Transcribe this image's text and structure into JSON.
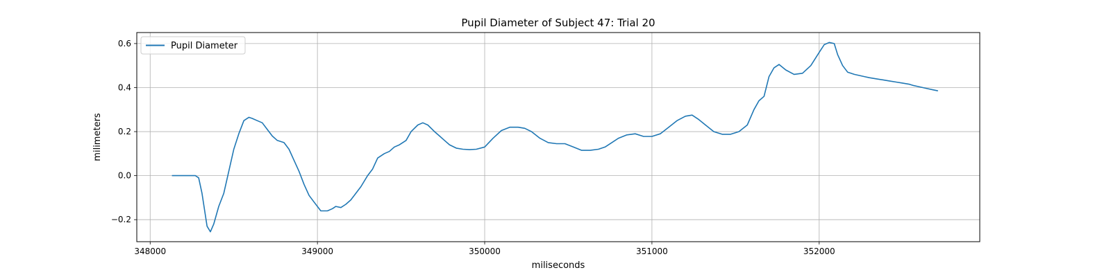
{
  "chart_data": {
    "type": "line",
    "title": "Pupil Diameter of Subject 47: Trial 20",
    "xlabel": "miliseconds",
    "ylabel": "milimeters",
    "xlim": [
      347920,
      352960
    ],
    "ylim": [
      -0.3,
      0.65
    ],
    "xticks": [
      348000,
      349000,
      350000,
      351000,
      352000
    ],
    "yticks": [
      -0.2,
      0.0,
      0.2,
      0.4,
      0.6
    ],
    "xtick_labels": [
      "348000",
      "349000",
      "350000",
      "351000",
      "352000"
    ],
    "ytick_labels": [
      "−0.2",
      "0.0",
      "0.2",
      "0.4",
      "0.6"
    ],
    "grid": true,
    "legend_position": "upper-left",
    "series": [
      {
        "name": "Pupil Diameter",
        "color": "#1f77b4",
        "x": [
          348130,
          348200,
          348270,
          348290,
          348310,
          348340,
          348360,
          348380,
          348410,
          348440,
          348470,
          348500,
          348530,
          348560,
          348590,
          348610,
          348640,
          348670,
          348700,
          348730,
          348760,
          348800,
          348830,
          348860,
          348890,
          348920,
          348950,
          348980,
          349020,
          349060,
          349090,
          349110,
          349140,
          349170,
          349200,
          349230,
          349260,
          349300,
          349330,
          349360,
          349400,
          349430,
          349460,
          349490,
          349530,
          349560,
          349600,
          349630,
          349660,
          349700,
          349730,
          349760,
          349790,
          349830,
          349870,
          349910,
          349950,
          350000,
          350050,
          350100,
          350150,
          350200,
          350240,
          350280,
          350330,
          350380,
          350430,
          350480,
          350530,
          350580,
          350630,
          350680,
          350720,
          350760,
          350800,
          350850,
          350900,
          350950,
          351000,
          351050,
          351100,
          351150,
          351200,
          351240,
          351280,
          351320,
          351370,
          351420,
          351470,
          351520,
          351570,
          351610,
          351640,
          351670,
          351700,
          351730,
          351760,
          351800,
          351850,
          351900,
          351950,
          352000,
          352030,
          352060,
          352090,
          352110,
          352140,
          352170,
          352190,
          352210,
          352240,
          352270,
          352300,
          352340,
          352380,
          352420,
          352460,
          352500,
          352540,
          352560,
          352590,
          352620,
          352650,
          352680,
          352710
        ],
        "y": [
          0.0,
          0.0,
          0.0,
          -0.01,
          -0.08,
          -0.23,
          -0.255,
          -0.22,
          -0.14,
          -0.08,
          0.02,
          0.12,
          0.19,
          0.25,
          0.265,
          0.26,
          0.25,
          0.24,
          0.21,
          0.18,
          0.16,
          0.15,
          0.12,
          0.07,
          0.02,
          -0.04,
          -0.09,
          -0.12,
          -0.16,
          -0.16,
          -0.15,
          -0.14,
          -0.145,
          -0.13,
          -0.11,
          -0.08,
          -0.05,
          0.0,
          0.03,
          0.08,
          0.1,
          0.11,
          0.13,
          0.14,
          0.16,
          0.2,
          0.23,
          0.24,
          0.23,
          0.2,
          0.18,
          0.16,
          0.14,
          0.125,
          0.12,
          0.118,
          0.12,
          0.13,
          0.17,
          0.205,
          0.22,
          0.22,
          0.215,
          0.2,
          0.17,
          0.15,
          0.145,
          0.145,
          0.13,
          0.115,
          0.115,
          0.12,
          0.13,
          0.15,
          0.17,
          0.185,
          0.19,
          0.178,
          0.178,
          0.19,
          0.22,
          0.25,
          0.27,
          0.275,
          0.255,
          0.23,
          0.2,
          0.188,
          0.188,
          0.2,
          0.23,
          0.3,
          0.34,
          0.36,
          0.45,
          0.49,
          0.505,
          0.48,
          0.46,
          0.465,
          0.5,
          0.56,
          0.595,
          0.605,
          0.6,
          0.55,
          0.5,
          0.47,
          0.465,
          0.46,
          0.455,
          0.45,
          0.445,
          0.44,
          0.435,
          0.43,
          0.425,
          0.42,
          0.415,
          0.41,
          0.405,
          0.4,
          0.395,
          0.39,
          0.385
        ]
      }
    ]
  }
}
